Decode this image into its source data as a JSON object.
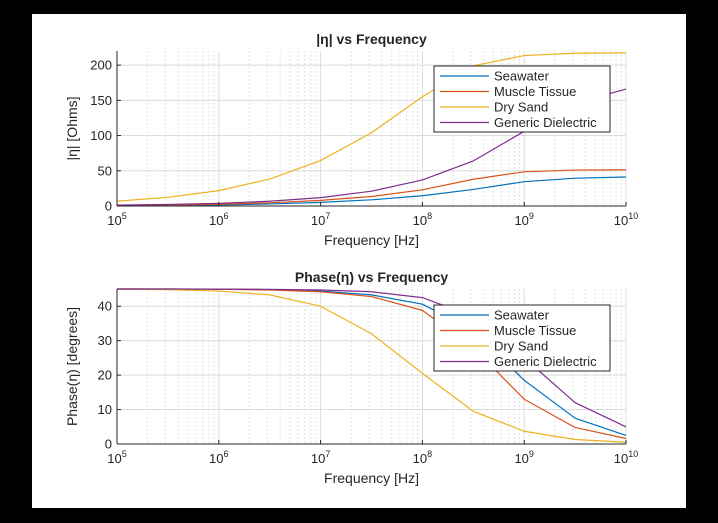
{
  "chart_data": [
    {
      "type": "line",
      "title": "|η| vs Frequency",
      "xlabel": "Frequency [Hz]",
      "ylabel": "|η|  [Ohms]",
      "xscale": "log",
      "xlim": [
        100000,
        10000000000
      ],
      "ylim": [
        0,
        220
      ],
      "xticks": [
        {
          "base": "10",
          "exp": "5"
        },
        {
          "base": "10",
          "exp": "6"
        },
        {
          "base": "10",
          "exp": "7"
        },
        {
          "base": "10",
          "exp": "8"
        },
        {
          "base": "10",
          "exp": "9"
        },
        {
          "base": "10",
          "exp": "10"
        }
      ],
      "yticks": [
        "0",
        "50",
        "100",
        "150",
        "200"
      ],
      "grid": true,
      "legend_position": "top-right",
      "x": [
        100000,
        316228,
        1000000,
        3162278,
        10000000,
        31622777,
        100000000,
        316227766,
        1000000000,
        3162277660,
        10000000000
      ],
      "series": [
        {
          "name": "Seawater",
          "color": "#0072BD",
          "values": [
            0.5,
            0.9,
            1.6,
            2.9,
            5.1,
            8.8,
            14.5,
            23.5,
            34.5,
            39.5,
            41.2
          ]
        },
        {
          "name": "Muscle Tissue",
          "color": "#D95319",
          "values": [
            0.8,
            1.4,
            2.5,
            4.5,
            8.0,
            13.5,
            23.0,
            38.0,
            48.5,
            51.0,
            51.5
          ]
        },
        {
          "name": "Dry Sand",
          "color": "#EDB120",
          "values": [
            6.9,
            12.3,
            21.8,
            38.2,
            64.5,
            104.0,
            155.0,
            199.0,
            213.5,
            216.8,
            217.3
          ]
        },
        {
          "name": "Generic Dielectric",
          "color": "#7E2F8E",
          "values": [
            1.2,
            2.1,
            3.8,
            6.7,
            11.9,
            21.0,
            37.0,
            64.0,
            106.0,
            146.0,
            166.0
          ]
        }
      ]
    },
    {
      "type": "line",
      "title": "Phase(η) vs Frequency",
      "xlabel": "Frequency [Hz]",
      "ylabel": "Phase(η) [degrees]",
      "xscale": "log",
      "xlim": [
        100000,
        10000000000
      ],
      "ylim": [
        0,
        45
      ],
      "xticks": [
        {
          "base": "10",
          "exp": "5"
        },
        {
          "base": "10",
          "exp": "6"
        },
        {
          "base": "10",
          "exp": "7"
        },
        {
          "base": "10",
          "exp": "8"
        },
        {
          "base": "10",
          "exp": "9"
        },
        {
          "base": "10",
          "exp": "10"
        }
      ],
      "yticks": [
        "0",
        "10",
        "20",
        "30",
        "40"
      ],
      "grid": true,
      "legend_position": "top-right",
      "x": [
        100000,
        316228,
        1000000,
        3162278,
        10000000,
        31622777,
        100000000,
        316227766,
        1000000000,
        3162277660,
        10000000000
      ],
      "series": [
        {
          "name": "Seawater",
          "color": "#0072BD",
          "values": [
            45.0,
            45.0,
            44.95,
            44.8,
            44.4,
            43.3,
            40.6,
            33.0,
            18.5,
            7.5,
            2.5
          ]
        },
        {
          "name": "Muscle Tissue",
          "color": "#D95319",
          "values": [
            45.0,
            44.98,
            44.93,
            44.7,
            44.2,
            42.8,
            38.8,
            28.0,
            13.0,
            4.8,
            1.6
          ]
        },
        {
          "name": "Dry Sand",
          "color": "#EDB120",
          "values": [
            44.95,
            44.8,
            44.4,
            43.3,
            40.0,
            32.0,
            20.5,
            9.5,
            3.7,
            1.3,
            0.5
          ]
        },
        {
          "name": "Generic Dielectric",
          "color": "#7E2F8E",
          "values": [
            45.0,
            45.0,
            44.97,
            44.9,
            44.7,
            44.2,
            42.5,
            37.0,
            25.0,
            12.0,
            5.0
          ]
        }
      ]
    }
  ]
}
